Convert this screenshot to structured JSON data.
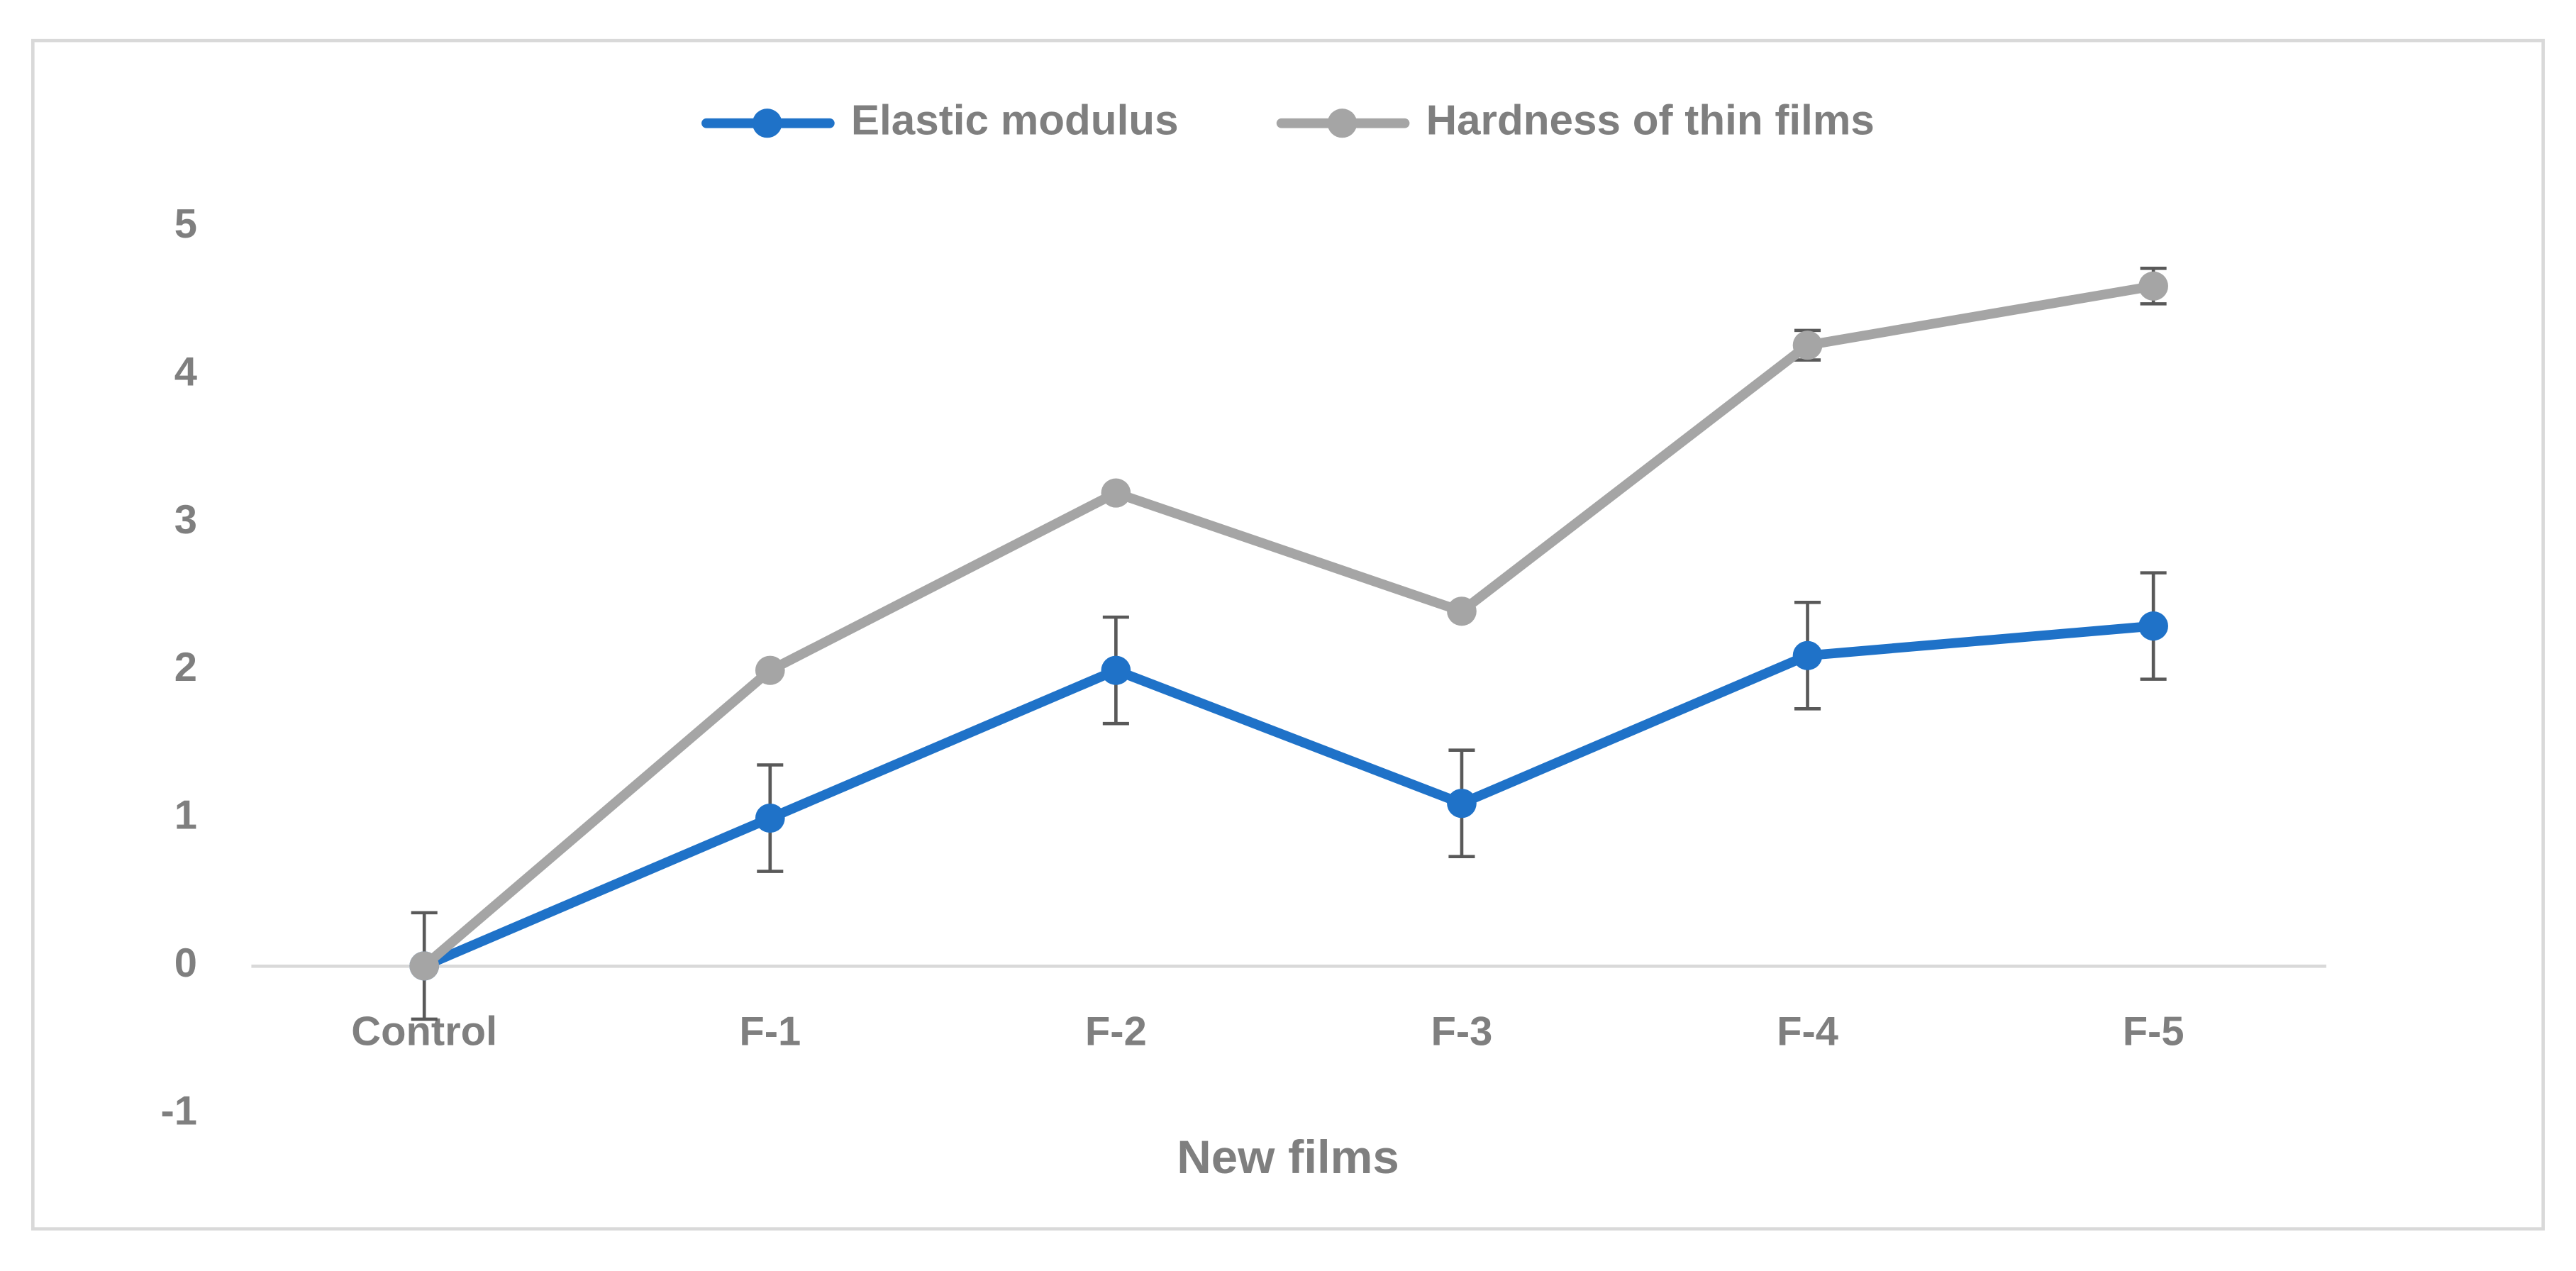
{
  "chart_data": {
    "type": "line",
    "x_label": "New films",
    "categories": [
      "Control",
      "F-1",
      "F-2",
      "F-3",
      "F-4",
      "F-5"
    ],
    "series": [
      {
        "name": "Elastic modulus",
        "color": "#1f72c8",
        "values": [
          0,
          1,
          2,
          1.1,
          2.1,
          2.3
        ],
        "errors": [
          0.36,
          0.36,
          0.36,
          0.36,
          0.36,
          0.36
        ]
      },
      {
        "name": "Hardness of thin films",
        "color": "#a5a5a5",
        "values": [
          0,
          2,
          3.2,
          2.4,
          4.2,
          4.6
        ],
        "errors": [
          0,
          0,
          0,
          0,
          0.1,
          0.12
        ]
      }
    ],
    "ylim": [
      -1,
      5
    ],
    "yticks": [
      -1,
      0,
      1,
      2,
      3,
      4,
      5
    ],
    "grid": false,
    "legend": "top"
  }
}
